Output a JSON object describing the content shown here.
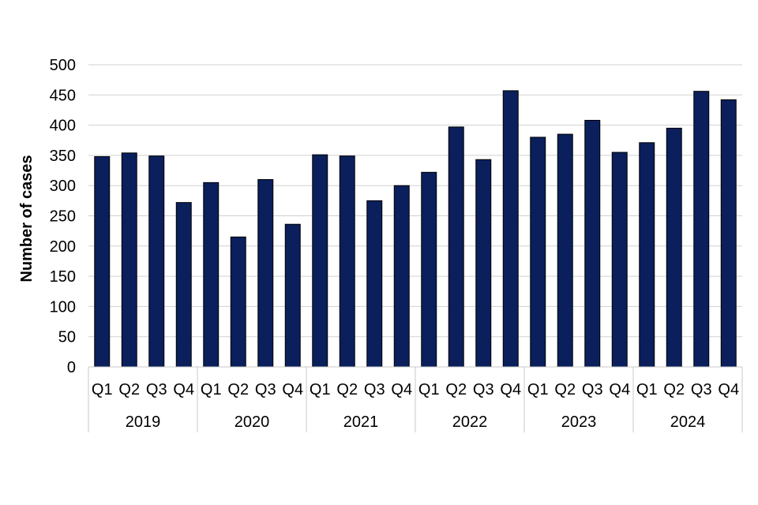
{
  "chart_data": {
    "type": "bar",
    "title": "",
    "xlabel": "",
    "ylabel": "Number of cases",
    "ylim": [
      0,
      500
    ],
    "yticks": [
      "0",
      "50",
      "100",
      "150",
      "200",
      "250",
      "300",
      "350",
      "400",
      "450",
      "500"
    ],
    "grid": true,
    "legend": "none",
    "bar_color": "#0a1f5c",
    "groups": [
      {
        "year": "2019",
        "quarters": [
          "Q1",
          "Q2",
          "Q3",
          "Q4"
        ],
        "values": [
          348,
          354,
          349,
          272
        ]
      },
      {
        "year": "2020",
        "quarters": [
          "Q1",
          "Q2",
          "Q3",
          "Q4"
        ],
        "values": [
          305,
          215,
          310,
          236
        ]
      },
      {
        "year": "2021",
        "quarters": [
          "Q1",
          "Q2",
          "Q3",
          "Q4"
        ],
        "values": [
          351,
          349,
          275,
          300
        ]
      },
      {
        "year": "2022",
        "quarters": [
          "Q1",
          "Q2",
          "Q3",
          "Q4"
        ],
        "values": [
          322,
          397,
          343,
          457
        ]
      },
      {
        "year": "2023",
        "quarters": [
          "Q1",
          "Q2",
          "Q3",
          "Q4"
        ],
        "values": [
          380,
          385,
          408,
          355
        ]
      },
      {
        "year": "2024",
        "quarters": [
          "Q1",
          "Q2",
          "Q3",
          "Q4"
        ],
        "values": [
          371,
          395,
          456,
          442
        ]
      }
    ]
  }
}
